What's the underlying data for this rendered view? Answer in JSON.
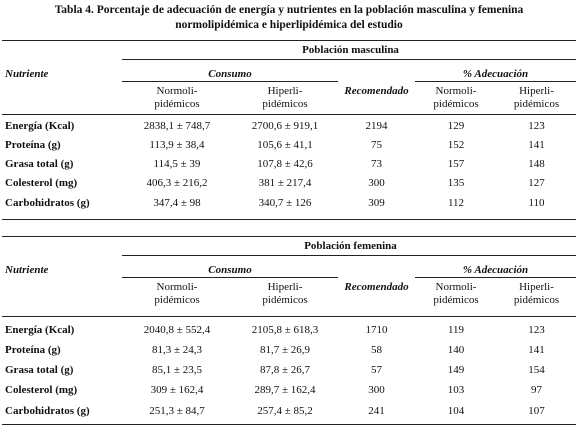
{
  "title_line1": "Tabla 4. Porcentaje de adecuación de energía y nutrientes en la población masculina y femenina",
  "title_line2": "normolipidémica e hiperlipidémica del estudio",
  "headers": {
    "nutriente": "Nutriente",
    "consumo": "Consumo",
    "normo_line1": "Normoli-",
    "normo_line2": "pidémicos",
    "hiper_line1": "Hiperli-",
    "hiper_line2": "pidémicos",
    "recomendado": "Recomendado",
    "adecuacion": "% Adecuación"
  },
  "sections": [
    {
      "title": "Población masculina",
      "rows": [
        {
          "nutrient": "Energía (Kcal)",
          "normo": "2838,1 ± 748,7",
          "hiper": "2700,6 ± 919,1",
          "recomendado": "2194",
          "pct_normo": "129",
          "pct_hiper": "123"
        },
        {
          "nutrient": "Proteína (g)",
          "normo": "113,9 ± 38,4",
          "hiper": "105,6 ± 41,1",
          "recomendado": "75",
          "pct_normo": "152",
          "pct_hiper": "141"
        },
        {
          "nutrient": "Grasa total (g)",
          "normo": "114,5 ± 39",
          "hiper": "107,8 ± 42,6",
          "recomendado": "73",
          "pct_normo": "157",
          "pct_hiper": "148"
        },
        {
          "nutrient": "Colesterol (mg)",
          "normo": "406,3 ± 216,2",
          "hiper": "381 ± 217,4",
          "recomendado": "300",
          "pct_normo": "135",
          "pct_hiper": "127"
        },
        {
          "nutrient": "Carbohidratos (g)",
          "normo": "347,4 ± 98",
          "hiper": "340,7 ± 126",
          "recomendado": "309",
          "pct_normo": "112",
          "pct_hiper": "110"
        }
      ]
    },
    {
      "title": "Población femenina",
      "rows": [
        {
          "nutrient": "Energía (Kcal)",
          "normo": "2040,8 ± 552,4",
          "hiper": "2105,8 ± 618,3",
          "recomendado": "1710",
          "pct_normo": "119",
          "pct_hiper": "123"
        },
        {
          "nutrient": "Proteína (g)",
          "normo": "81,3 ± 24,3",
          "hiper": "81,7 ± 26,9",
          "recomendado": "58",
          "pct_normo": "140",
          "pct_hiper": "141"
        },
        {
          "nutrient": "Grasa total (g)",
          "normo": "85,1 ± 23,5",
          "hiper": "87,8 ± 26,7",
          "recomendado": "57",
          "pct_normo": "149",
          "pct_hiper": "154"
        },
        {
          "nutrient": "Colesterol (mg)",
          "normo": "309 ± 162,4",
          "hiper": "289,7 ± 162,4",
          "recomendado": "300",
          "pct_normo": "103",
          "pct_hiper": "97"
        },
        {
          "nutrient": "Carbohidratos (g)",
          "normo": "251,3 ± 84,7",
          "hiper": "257,4 ± 85,2",
          "recomendado": "241",
          "pct_normo": "104",
          "pct_hiper": "107"
        }
      ]
    }
  ]
}
